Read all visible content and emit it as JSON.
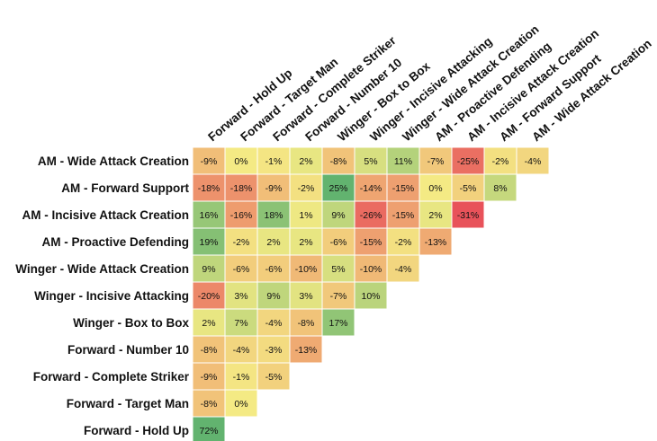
{
  "chart_data": {
    "type": "heatmap",
    "title": "",
    "value_suffix": "%",
    "columns": [
      "Forward - Hold Up",
      "Forward - Target Man",
      "Forward - Complete Striker",
      "Forward - Number 10",
      "Winger - Box to Box",
      "Winger - Incisive Attacking",
      "Winger - Wide Attack Creation",
      "AM - Proactive Defending",
      "AM - Incisive Attack Creation",
      "AM - Forward Support",
      "AM - Wide Attack Creation"
    ],
    "rows": [
      "AM - Wide Attack Creation",
      "AM - Forward Support",
      "AM - Incisive Attack Creation",
      "AM - Proactive Defending",
      "Winger - Wide Attack Creation",
      "Winger - Incisive Attacking",
      "Winger - Box to Box",
      "Forward - Number 10",
      "Forward - Complete Striker",
      "Forward - Target Man",
      "Forward - Hold Up"
    ],
    "values": [
      [
        -9,
        0,
        -1,
        2,
        -8,
        5,
        11,
        -7,
        -25,
        -2,
        -4
      ],
      [
        -18,
        -18,
        -9,
        -2,
        25,
        -14,
        -15,
        0,
        -5,
        8
      ],
      [
        16,
        -16,
        18,
        1,
        9,
        -26,
        -15,
        2,
        -31
      ],
      [
        19,
        -2,
        2,
        2,
        -6,
        -15,
        -2,
        -13
      ],
      [
        9,
        -6,
        -6,
        -10,
        5,
        -10,
        -4
      ],
      [
        -20,
        3,
        9,
        3,
        -7,
        10
      ],
      [
        2,
        7,
        -4,
        -8,
        17
      ],
      [
        -8,
        -4,
        -3,
        -13
      ],
      [
        -9,
        -1,
        -5
      ],
      [
        -8,
        0
      ],
      [
        72
      ]
    ],
    "color_scale": {
      "low": "#e8525a",
      "mid": "#f4ea84",
      "high": "#62b36f",
      "low_value": -31,
      "mid_value": 0,
      "high_value": 25
    }
  }
}
